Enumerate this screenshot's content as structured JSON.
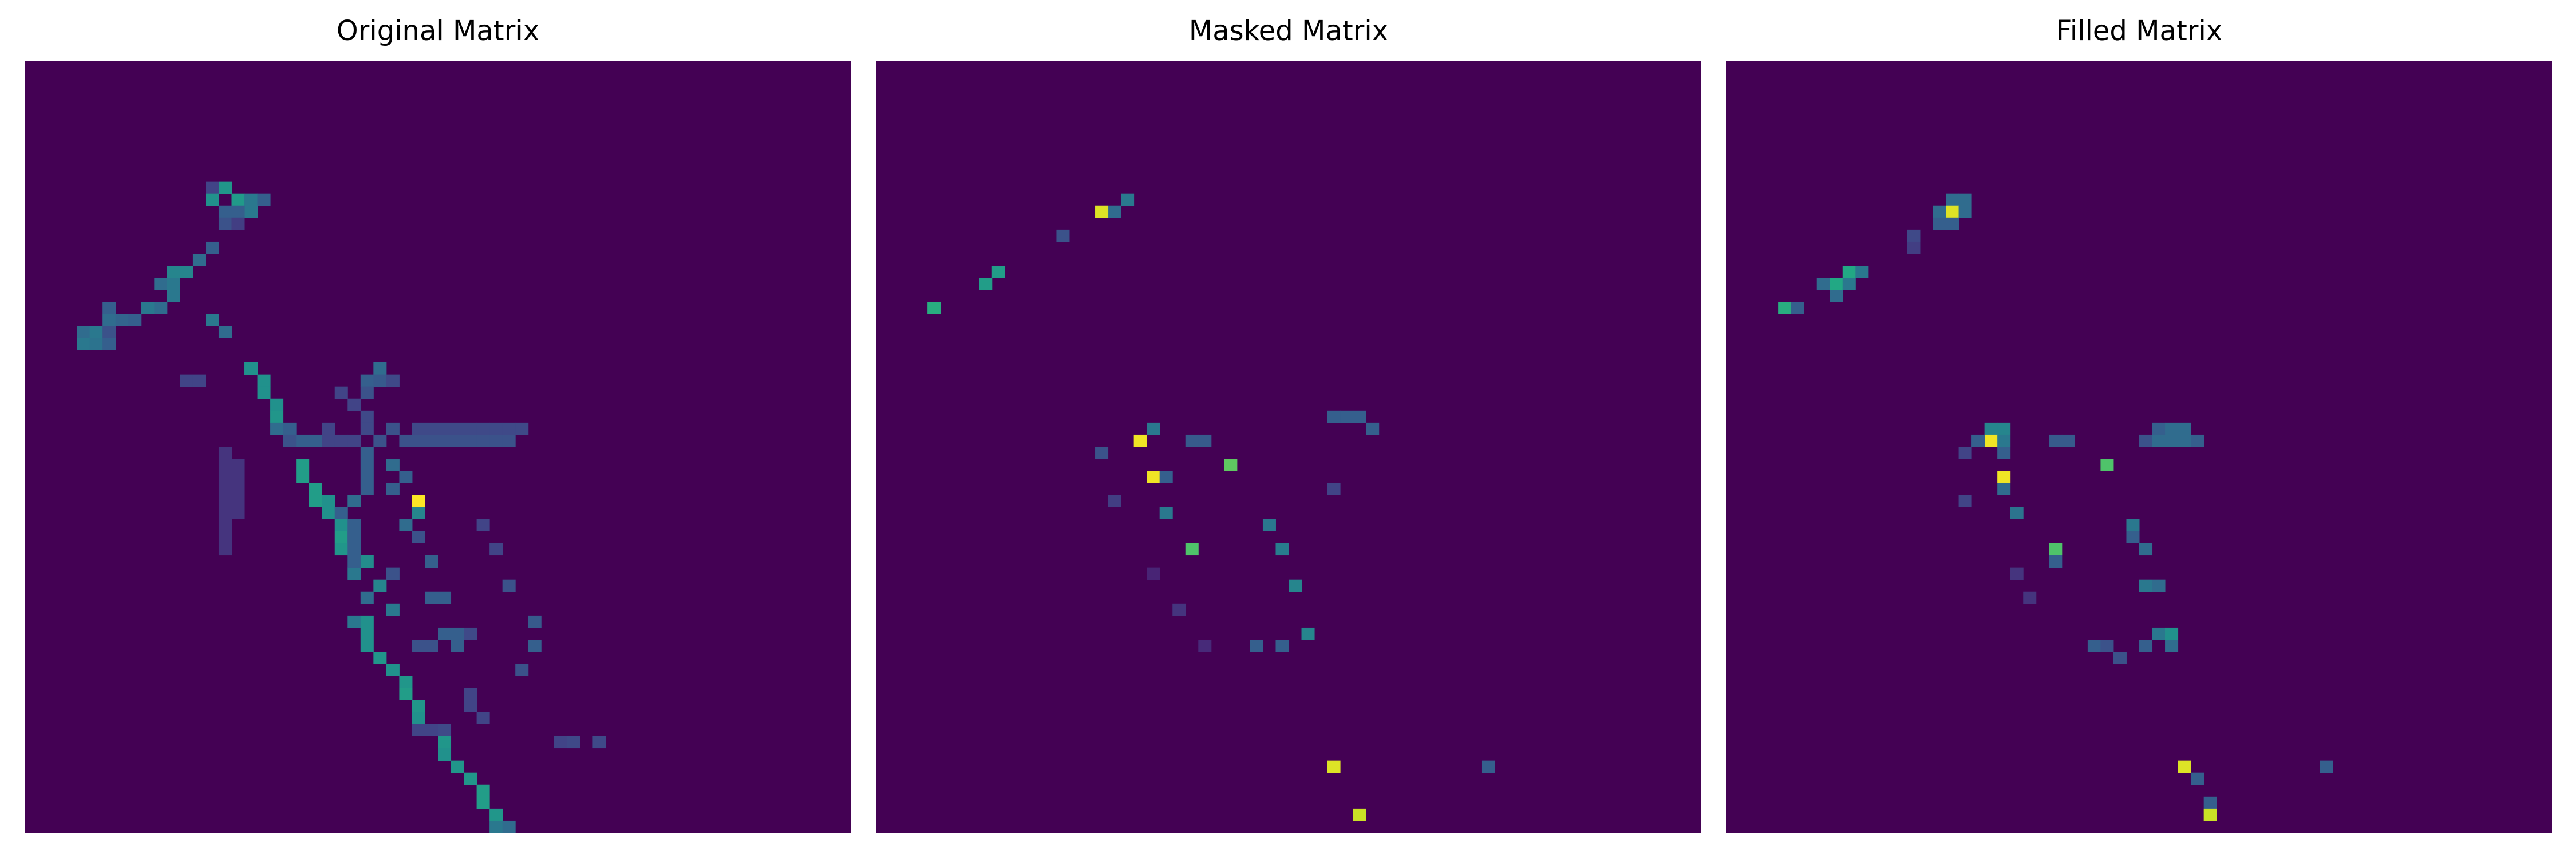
{
  "chart_data": [
    {
      "type": "heatmap",
      "title": "Original Matrix",
      "colormap": "viridis",
      "background_value": 0,
      "value_range": [
        0,
        1
      ],
      "grid": false,
      "axes_visible": false,
      "shape": [
        64,
        64
      ],
      "cells": [
        [
          10,
          15,
          0.52
        ],
        [
          10,
          14,
          0.2
        ],
        [
          11,
          14,
          0.5
        ],
        [
          11,
          16,
          0.54
        ],
        [
          11,
          17,
          0.4
        ],
        [
          11,
          18,
          0.3
        ],
        [
          12,
          17,
          0.4
        ],
        [
          12,
          16,
          0.3
        ],
        [
          12,
          15,
          0.3
        ],
        [
          13,
          15,
          0.25
        ],
        [
          13,
          16,
          0.18
        ],
        [
          15,
          14,
          0.3
        ],
        [
          16,
          13,
          0.35
        ],
        [
          17,
          11,
          0.45
        ],
        [
          17,
          12,
          0.45
        ],
        [
          18,
          10,
          0.35
        ],
        [
          18,
          11,
          0.4
        ],
        [
          19,
          11,
          0.4
        ],
        [
          20,
          9,
          0.4
        ],
        [
          20,
          10,
          0.35
        ],
        [
          20,
          6,
          0.3
        ],
        [
          21,
          6,
          0.35
        ],
        [
          21,
          7,
          0.32
        ],
        [
          21,
          8,
          0.3
        ],
        [
          22,
          4,
          0.35
        ],
        [
          22,
          5,
          0.4
        ],
        [
          22,
          6,
          0.25
        ],
        [
          23,
          4,
          0.4
        ],
        [
          23,
          5,
          0.38
        ],
        [
          23,
          6,
          0.3
        ],
        [
          21,
          14,
          0.4
        ],
        [
          22,
          15,
          0.35
        ],
        [
          25,
          17,
          0.5
        ],
        [
          26,
          18,
          0.5
        ],
        [
          27,
          18,
          0.5
        ],
        [
          28,
          19,
          0.5
        ],
        [
          29,
          19,
          0.52
        ],
        [
          31,
          20,
          0.55
        ],
        [
          33,
          21,
          0.55
        ],
        [
          34,
          21,
          0.55
        ],
        [
          35,
          22,
          0.55
        ],
        [
          36,
          22,
          0.55
        ],
        [
          36,
          23,
          0.5
        ],
        [
          37,
          23,
          0.5
        ],
        [
          38,
          24,
          0.5
        ],
        [
          39,
          24,
          0.55
        ],
        [
          40,
          24,
          0.52
        ],
        [
          41,
          26,
          0.48
        ],
        [
          42,
          25,
          0.4
        ],
        [
          43,
          27,
          0.45
        ],
        [
          44,
          26,
          0.35
        ],
        [
          45,
          28,
          0.4
        ],
        [
          46,
          25,
          0.4
        ],
        [
          46,
          26,
          0.5
        ],
        [
          47,
          26,
          0.5
        ],
        [
          48,
          26,
          0.5
        ],
        [
          49,
          27,
          0.52
        ],
        [
          50,
          28,
          0.5
        ],
        [
          51,
          29,
          0.52
        ],
        [
          52,
          29,
          0.55
        ],
        [
          53,
          30,
          0.52
        ],
        [
          54,
          30,
          0.5
        ],
        [
          55,
          31,
          0.5
        ],
        [
          56,
          32,
          0.52
        ],
        [
          57,
          32,
          0.5
        ],
        [
          58,
          33,
          0.52
        ],
        [
          59,
          34,
          0.52
        ],
        [
          60,
          35,
          0.55
        ],
        [
          61,
          35,
          0.55
        ],
        [
          62,
          36,
          0.52
        ],
        [
          63,
          36,
          0.4
        ],
        [
          63,
          37,
          0.35
        ],
        [
          25,
          27,
          0.35
        ],
        [
          26,
          26,
          0.3
        ],
        [
          26,
          27,
          0.28
        ],
        [
          27,
          26,
          0.25
        ],
        [
          26,
          28,
          0.22
        ],
        [
          27,
          24,
          0.2
        ],
        [
          28,
          25,
          0.2
        ],
        [
          29,
          26,
          0.22
        ],
        [
          30,
          26,
          0.22
        ],
        [
          31,
          27,
          0.25
        ],
        [
          32,
          26,
          0.3
        ],
        [
          33,
          26,
          0.3
        ],
        [
          34,
          26,
          0.3
        ],
        [
          35,
          26,
          0.3
        ],
        [
          36,
          25,
          0.35
        ],
        [
          37,
          24,
          0.3
        ],
        [
          38,
          25,
          0.3
        ],
        [
          39,
          25,
          0.3
        ],
        [
          40,
          25,
          0.3
        ],
        [
          41,
          25,
          0.3
        ],
        [
          26,
          12,
          0.2
        ],
        [
          26,
          13,
          0.2
        ],
        [
          32,
          15,
          0.15
        ],
        [
          33,
          15,
          0.15
        ],
        [
          34,
          15,
          0.15
        ],
        [
          35,
          15,
          0.15
        ],
        [
          36,
          15,
          0.15
        ],
        [
          37,
          15,
          0.15
        ],
        [
          38,
          15,
          0.15
        ],
        [
          39,
          15,
          0.15
        ],
        [
          40,
          15,
          0.15
        ],
        [
          33,
          16,
          0.15
        ],
        [
          34,
          16,
          0.15
        ],
        [
          35,
          16,
          0.15
        ],
        [
          36,
          16,
          0.15
        ],
        [
          37,
          16,
          0.15
        ],
        [
          30,
          19,
          0.35
        ],
        [
          30,
          20,
          0.3
        ],
        [
          31,
          20,
          0.25
        ],
        [
          31,
          21,
          0.3
        ],
        [
          31,
          22,
          0.3
        ],
        [
          30,
          23,
          0.2
        ],
        [
          31,
          23,
          0.2
        ],
        [
          31,
          24,
          0.2
        ],
        [
          31,
          25,
          0.2
        ],
        [
          30,
          28,
          0.25
        ],
        [
          31,
          29,
          0.25
        ],
        [
          31,
          30,
          0.25
        ],
        [
          31,
          31,
          0.25
        ],
        [
          31,
          32,
          0.25
        ],
        [
          31,
          33,
          0.25
        ],
        [
          31,
          34,
          0.25
        ],
        [
          31,
          35,
          0.25
        ],
        [
          31,
          36,
          0.25
        ],
        [
          31,
          37,
          0.25
        ],
        [
          30,
          30,
          0.22
        ],
        [
          30,
          31,
          0.22
        ],
        [
          30,
          32,
          0.22
        ],
        [
          30,
          33,
          0.22
        ],
        [
          30,
          34,
          0.22
        ],
        [
          30,
          35,
          0.22
        ],
        [
          30,
          36,
          0.22
        ],
        [
          30,
          37,
          0.22
        ],
        [
          30,
          38,
          0.22
        ],
        [
          33,
          28,
          0.35
        ],
        [
          34,
          29,
          0.3
        ],
        [
          35,
          28,
          0.3
        ],
        [
          37,
          30,
          0.4
        ],
        [
          38,
          29,
          0.35
        ],
        [
          39,
          25,
          0.3
        ],
        [
          36,
          30,
          1.0
        ],
        [
          37,
          30,
          0.45
        ],
        [
          38,
          35,
          0.2
        ],
        [
          39,
          30,
          0.25
        ],
        [
          40,
          36,
          0.2
        ],
        [
          41,
          31,
          0.3
        ],
        [
          42,
          28,
          0.25
        ],
        [
          43,
          37,
          0.25
        ],
        [
          44,
          31,
          0.3
        ],
        [
          44,
          32,
          0.3
        ],
        [
          46,
          39,
          0.28
        ],
        [
          47,
          32,
          0.3
        ],
        [
          47,
          33,
          0.3
        ],
        [
          47,
          34,
          0.22
        ],
        [
          48,
          30,
          0.25
        ],
        [
          48,
          31,
          0.25
        ],
        [
          48,
          33,
          0.3
        ],
        [
          48,
          39,
          0.3
        ],
        [
          50,
          38,
          0.25
        ],
        [
          52,
          34,
          0.2
        ],
        [
          53,
          34,
          0.2
        ],
        [
          54,
          35,
          0.2
        ],
        [
          55,
          30,
          0.2
        ],
        [
          55,
          31,
          0.2
        ],
        [
          55,
          32,
          0.22
        ],
        [
          56,
          41,
          0.2
        ],
        [
          56,
          42,
          0.22
        ],
        [
          56,
          44,
          0.22
        ]
      ]
    },
    {
      "type": "heatmap",
      "title": "Masked Matrix",
      "colormap": "viridis",
      "background_value": 0,
      "value_range": [
        0,
        1
      ],
      "grid": false,
      "axes_visible": false,
      "shape": [
        64,
        64
      ],
      "cells": [
        [
          11,
          19,
          0.4
        ],
        [
          12,
          18,
          0.35
        ],
        [
          12,
          17,
          0.95
        ],
        [
          14,
          14,
          0.25
        ],
        [
          17,
          9,
          0.55
        ],
        [
          18,
          8,
          0.55
        ],
        [
          20,
          4,
          0.62
        ],
        [
          29,
          35,
          0.3
        ],
        [
          29,
          36,
          0.3
        ],
        [
          29,
          37,
          0.3
        ],
        [
          30,
          21,
          0.4
        ],
        [
          30,
          38,
          0.3
        ],
        [
          31,
          20,
          0.98
        ],
        [
          31,
          24,
          0.28
        ],
        [
          31,
          25,
          0.28
        ],
        [
          32,
          17,
          0.25
        ],
        [
          33,
          27,
          0.75
        ],
        [
          34,
          21,
          0.98
        ],
        [
          34,
          22,
          0.3
        ],
        [
          35,
          35,
          0.2
        ],
        [
          36,
          18,
          0.18
        ],
        [
          37,
          22,
          0.4
        ],
        [
          38,
          30,
          0.4
        ],
        [
          40,
          24,
          0.72
        ],
        [
          40,
          31,
          0.42
        ],
        [
          42,
          21,
          0.1
        ],
        [
          43,
          32,
          0.45
        ],
        [
          45,
          23,
          0.15
        ],
        [
          47,
          33,
          0.45
        ],
        [
          48,
          29,
          0.3
        ],
        [
          48,
          31,
          0.3
        ],
        [
          48,
          25,
          0.12
        ],
        [
          58,
          35,
          0.95
        ],
        [
          58,
          47,
          0.3
        ],
        [
          62,
          37,
          0.92
        ]
      ]
    },
    {
      "type": "heatmap",
      "title": "Filled Matrix",
      "colormap": "viridis",
      "background_value": 0,
      "value_range": [
        0,
        1
      ],
      "grid": false,
      "axes_visible": false,
      "shape": [
        64,
        64
      ],
      "cells": [
        [
          11,
          17,
          0.35
        ],
        [
          11,
          18,
          0.35
        ],
        [
          12,
          16,
          0.35
        ],
        [
          12,
          17,
          0.95
        ],
        [
          12,
          18,
          0.35
        ],
        [
          13,
          16,
          0.3
        ],
        [
          13,
          17,
          0.3
        ],
        [
          14,
          14,
          0.22
        ],
        [
          15,
          14,
          0.18
        ],
        [
          17,
          9,
          0.6
        ],
        [
          17,
          10,
          0.4
        ],
        [
          18,
          7,
          0.35
        ],
        [
          18,
          8,
          0.6
        ],
        [
          18,
          9,
          0.4
        ],
        [
          19,
          8,
          0.35
        ],
        [
          20,
          4,
          0.62
        ],
        [
          20,
          5,
          0.3
        ],
        [
          30,
          20,
          0.45
        ],
        [
          30,
          21,
          0.45
        ],
        [
          30,
          33,
          0.3
        ],
        [
          30,
          34,
          0.35
        ],
        [
          30,
          35,
          0.35
        ],
        [
          31,
          20,
          0.98
        ],
        [
          31,
          21,
          0.4
        ],
        [
          31,
          19,
          0.3
        ],
        [
          31,
          25,
          0.28
        ],
        [
          31,
          26,
          0.28
        ],
        [
          31,
          32,
          0.25
        ],
        [
          31,
          33,
          0.35
        ],
        [
          31,
          34,
          0.35
        ],
        [
          31,
          35,
          0.35
        ],
        [
          31,
          36,
          0.3
        ],
        [
          32,
          18,
          0.2
        ],
        [
          32,
          21,
          0.3
        ],
        [
          33,
          29,
          0.72
        ],
        [
          34,
          21,
          0.98
        ],
        [
          35,
          21,
          0.35
        ],
        [
          36,
          18,
          0.2
        ],
        [
          37,
          22,
          0.38
        ],
        [
          38,
          31,
          0.4
        ],
        [
          39,
          31,
          0.3
        ],
        [
          40,
          25,
          0.72
        ],
        [
          40,
          32,
          0.35
        ],
        [
          41,
          25,
          0.3
        ],
        [
          42,
          22,
          0.15
        ],
        [
          43,
          32,
          0.4
        ],
        [
          43,
          33,
          0.35
        ],
        [
          44,
          23,
          0.15
        ],
        [
          47,
          33,
          0.4
        ],
        [
          47,
          34,
          0.5
        ],
        [
          48,
          32,
          0.3
        ],
        [
          48,
          34,
          0.35
        ],
        [
          48,
          28,
          0.3
        ],
        [
          48,
          29,
          0.25
        ],
        [
          49,
          30,
          0.25
        ],
        [
          58,
          35,
          0.95
        ],
        [
          58,
          46,
          0.3
        ],
        [
          59,
          36,
          0.3
        ],
        [
          61,
          37,
          0.3
        ],
        [
          62,
          37,
          0.92
        ]
      ]
    }
  ]
}
